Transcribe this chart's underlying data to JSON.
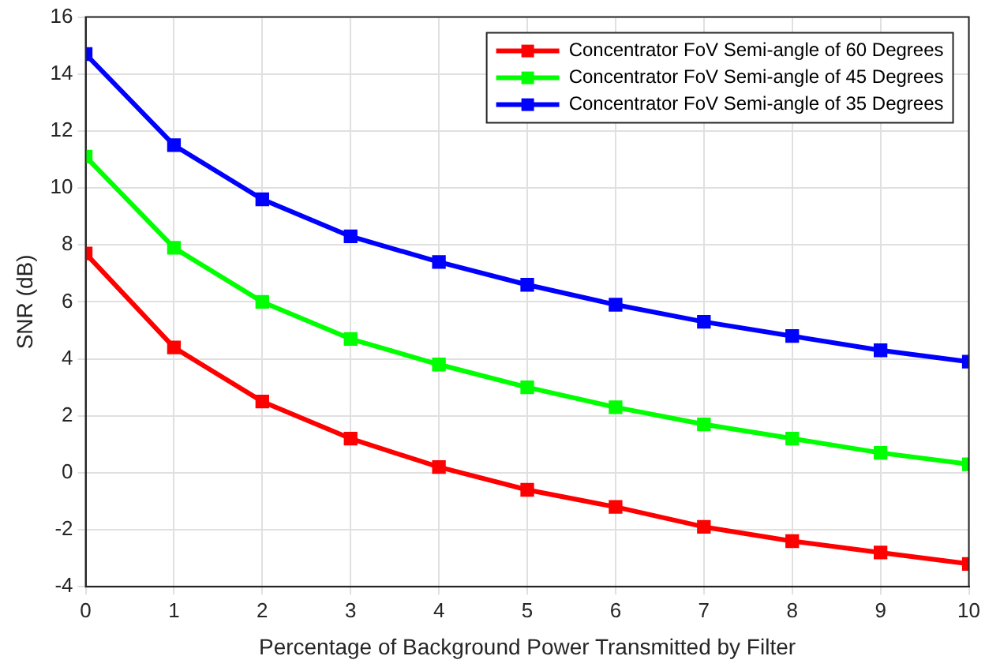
{
  "chart_data": {
    "type": "line",
    "xlabel": "Percentage of Background Power Transmitted by Filter",
    "ylabel": "SNR (dB)",
    "x": [
      0,
      1,
      2,
      3,
      4,
      5,
      6,
      7,
      8,
      9,
      10
    ],
    "series": [
      {
        "name": "Concentrator FoV Semi-angle of 60 Degrees",
        "color": "#ff0000",
        "values": [
          7.7,
          4.4,
          2.5,
          1.2,
          0.2,
          -0.6,
          -1.2,
          -1.9,
          -2.4,
          -2.8,
          -3.2
        ]
      },
      {
        "name": "Concentrator FoV Semi-angle of 45 Degrees",
        "color": "#00ff00",
        "values": [
          11.1,
          7.9,
          6.0,
          4.7,
          3.8,
          3.0,
          2.3,
          1.7,
          1.2,
          0.7,
          0.3
        ]
      },
      {
        "name": "Concentrator FoV Semi-angle of 35 Degrees",
        "color": "#0000ff",
        "values": [
          14.7,
          11.5,
          9.6,
          8.3,
          7.4,
          6.6,
          5.9,
          5.3,
          4.8,
          4.3,
          3.9
        ]
      }
    ],
    "xlim": [
      0,
      10
    ],
    "xticks": [
      0,
      1,
      2,
      3,
      4,
      5,
      6,
      7,
      8,
      9,
      10
    ],
    "ylim": [
      -4,
      16
    ],
    "yticks": [
      -4,
      -2,
      0,
      2,
      4,
      6,
      8,
      10,
      12,
      14,
      16
    ],
    "grid": true,
    "legend": "top right",
    "marker": "square",
    "line_style": "solid"
  }
}
